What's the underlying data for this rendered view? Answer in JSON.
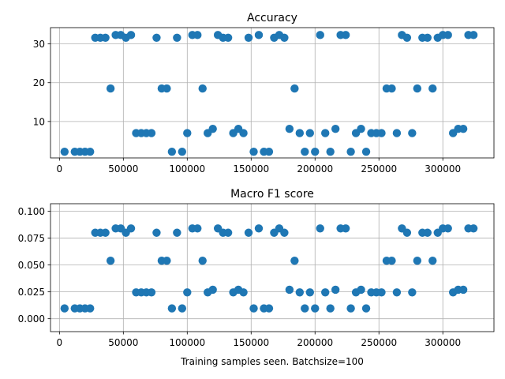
{
  "chart_data": [
    {
      "type": "scatter",
      "title": "Accuracy",
      "xlabel": "",
      "ylabel": "",
      "xlim": [
        -7000,
        340000
      ],
      "ylim": [
        0.6,
        34.2
      ],
      "xticks": [
        0,
        50000,
        100000,
        150000,
        200000,
        250000,
        300000
      ],
      "xtick_labels": [
        "0",
        "50000",
        "100000",
        "150000",
        "200000",
        "250000",
        "300000"
      ],
      "yticks": [
        10,
        20,
        30
      ],
      "ytick_labels": [
        "10",
        "20",
        "30"
      ],
      "grid": true,
      "color": "#1f77b4",
      "points": [
        [
          4000,
          2.2
        ],
        [
          12000,
          2.2
        ],
        [
          16000,
          2.2
        ],
        [
          20000,
          2.2
        ],
        [
          24000,
          2.2
        ],
        [
          28000,
          31.6
        ],
        [
          32000,
          31.6
        ],
        [
          36000,
          31.6
        ],
        [
          40000,
          18.5
        ],
        [
          44000,
          32.3
        ],
        [
          48000,
          32.3
        ],
        [
          52000,
          31.6
        ],
        [
          56000,
          32.3
        ],
        [
          60000,
          7.0
        ],
        [
          64000,
          7.0
        ],
        [
          68000,
          7.0
        ],
        [
          72000,
          7.0
        ],
        [
          76000,
          31.6
        ],
        [
          80000,
          18.5
        ],
        [
          84000,
          18.5
        ],
        [
          88000,
          2.2
        ],
        [
          92000,
          31.6
        ],
        [
          96000,
          2.2
        ],
        [
          100000,
          7.0
        ],
        [
          104000,
          32.3
        ],
        [
          108000,
          32.3
        ],
        [
          112000,
          18.5
        ],
        [
          116000,
          7.0
        ],
        [
          120000,
          8.1
        ],
        [
          124000,
          32.3
        ],
        [
          128000,
          31.6
        ],
        [
          132000,
          31.6
        ],
        [
          136000,
          7.0
        ],
        [
          140000,
          8.1
        ],
        [
          144000,
          7.0
        ],
        [
          148000,
          31.6
        ],
        [
          152000,
          2.2
        ],
        [
          156000,
          32.3
        ],
        [
          160000,
          2.2
        ],
        [
          164000,
          2.2
        ],
        [
          168000,
          31.6
        ],
        [
          172000,
          32.3
        ],
        [
          176000,
          31.6
        ],
        [
          180000,
          8.1
        ],
        [
          184000,
          18.5
        ],
        [
          188000,
          7.0
        ],
        [
          192000,
          2.2
        ],
        [
          196000,
          7.0
        ],
        [
          200000,
          2.2
        ],
        [
          204000,
          32.3
        ],
        [
          208000,
          7.0
        ],
        [
          212000,
          2.2
        ],
        [
          216000,
          8.1
        ],
        [
          220000,
          32.3
        ],
        [
          224000,
          32.3
        ],
        [
          228000,
          2.2
        ],
        [
          232000,
          7.0
        ],
        [
          236000,
          8.1
        ],
        [
          240000,
          2.2
        ],
        [
          244000,
          7.0
        ],
        [
          248000,
          7.0
        ],
        [
          252000,
          7.0
        ],
        [
          256000,
          18.5
        ],
        [
          260000,
          18.5
        ],
        [
          264000,
          7.0
        ],
        [
          268000,
          32.3
        ],
        [
          272000,
          31.6
        ],
        [
          276000,
          7.0
        ],
        [
          280000,
          18.5
        ],
        [
          284000,
          31.6
        ],
        [
          288000,
          31.6
        ],
        [
          292000,
          18.5
        ],
        [
          296000,
          31.6
        ],
        [
          300000,
          32.3
        ],
        [
          304000,
          32.3
        ],
        [
          308000,
          7.0
        ],
        [
          312000,
          8.1
        ],
        [
          316000,
          8.1
        ],
        [
          320000,
          32.3
        ],
        [
          324000,
          32.3
        ]
      ]
    },
    {
      "type": "scatter",
      "title": "Macro F1 score",
      "xlabel": "Training samples seen. Batchsize=100",
      "ylabel": "",
      "xlim": [
        -7000,
        340000
      ],
      "ylim": [
        -0.012,
        0.107
      ],
      "xticks": [
        0,
        50000,
        100000,
        150000,
        200000,
        250000,
        300000
      ],
      "xtick_labels": [
        "0",
        "50000",
        "100000",
        "150000",
        "200000",
        "250000",
        "300000"
      ],
      "yticks": [
        0.0,
        0.025,
        0.05,
        0.075,
        0.1
      ],
      "ytick_labels": [
        "0.000",
        "0.025",
        "0.050",
        "0.075",
        "0.100"
      ],
      "grid": true,
      "color": "#1f77b4",
      "points": [
        [
          4000,
          0.0096
        ],
        [
          12000,
          0.0096
        ],
        [
          16000,
          0.0096
        ],
        [
          20000,
          0.0096
        ],
        [
          24000,
          0.0096
        ],
        [
          28000,
          0.08
        ],
        [
          32000,
          0.08
        ],
        [
          36000,
          0.08
        ],
        [
          40000,
          0.054
        ],
        [
          44000,
          0.084
        ],
        [
          48000,
          0.084
        ],
        [
          52000,
          0.08
        ],
        [
          56000,
          0.084
        ],
        [
          60000,
          0.0245
        ],
        [
          64000,
          0.0245
        ],
        [
          68000,
          0.0245
        ],
        [
          72000,
          0.0245
        ],
        [
          76000,
          0.08
        ],
        [
          80000,
          0.054
        ],
        [
          84000,
          0.054
        ],
        [
          88000,
          0.0096
        ],
        [
          92000,
          0.08
        ],
        [
          96000,
          0.0096
        ],
        [
          100000,
          0.0245
        ],
        [
          104000,
          0.084
        ],
        [
          108000,
          0.084
        ],
        [
          112000,
          0.054
        ],
        [
          116000,
          0.0245
        ],
        [
          120000,
          0.027
        ],
        [
          124000,
          0.084
        ],
        [
          128000,
          0.08
        ],
        [
          132000,
          0.08
        ],
        [
          136000,
          0.0245
        ],
        [
          140000,
          0.027
        ],
        [
          144000,
          0.0245
        ],
        [
          148000,
          0.08
        ],
        [
          152000,
          0.0096
        ],
        [
          156000,
          0.084
        ],
        [
          160000,
          0.0096
        ],
        [
          164000,
          0.0096
        ],
        [
          168000,
          0.08
        ],
        [
          172000,
          0.084
        ],
        [
          176000,
          0.08
        ],
        [
          180000,
          0.027
        ],
        [
          184000,
          0.054
        ],
        [
          188000,
          0.0245
        ],
        [
          192000,
          0.0096
        ],
        [
          196000,
          0.0245
        ],
        [
          200000,
          0.0096
        ],
        [
          204000,
          0.084
        ],
        [
          208000,
          0.0245
        ],
        [
          212000,
          0.0096
        ],
        [
          216000,
          0.027
        ],
        [
          220000,
          0.084
        ],
        [
          224000,
          0.084
        ],
        [
          228000,
          0.0096
        ],
        [
          232000,
          0.0245
        ],
        [
          236000,
          0.027
        ],
        [
          240000,
          0.0096
        ],
        [
          244000,
          0.0245
        ],
        [
          248000,
          0.0245
        ],
        [
          252000,
          0.0245
        ],
        [
          256000,
          0.054
        ],
        [
          260000,
          0.054
        ],
        [
          264000,
          0.0245
        ],
        [
          268000,
          0.084
        ],
        [
          272000,
          0.08
        ],
        [
          276000,
          0.0245
        ],
        [
          280000,
          0.054
        ],
        [
          284000,
          0.08
        ],
        [
          288000,
          0.08
        ],
        [
          292000,
          0.054
        ],
        [
          296000,
          0.08
        ],
        [
          300000,
          0.084
        ],
        [
          304000,
          0.084
        ],
        [
          308000,
          0.0245
        ],
        [
          312000,
          0.027
        ],
        [
          316000,
          0.027
        ],
        [
          320000,
          0.084
        ],
        [
          324000,
          0.084
        ]
      ]
    }
  ]
}
